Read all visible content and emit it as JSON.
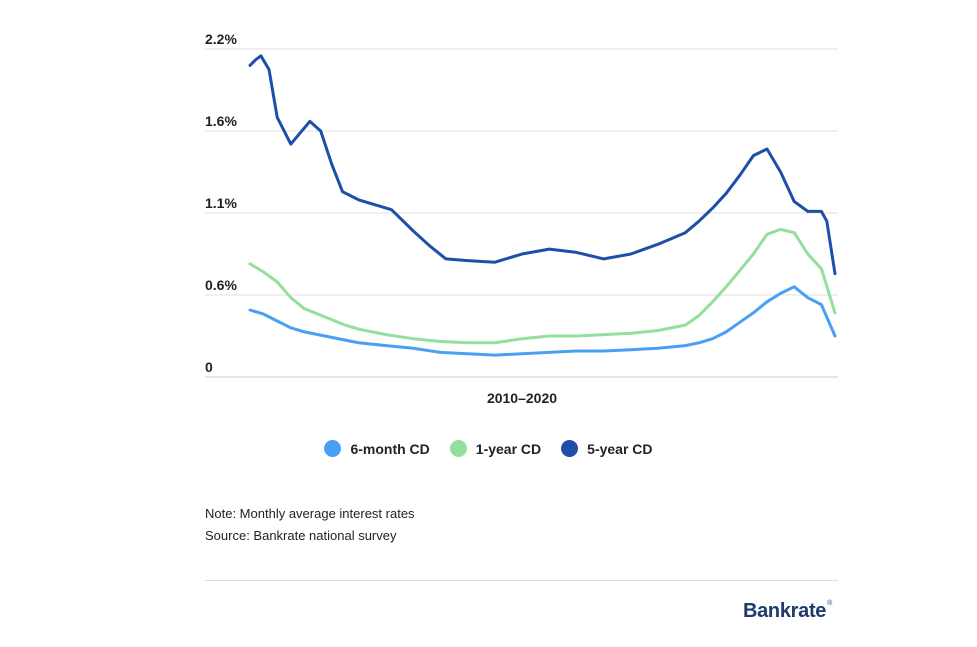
{
  "chart_data": {
    "type": "line",
    "title": "",
    "xlabel": "2010–2020",
    "ylabel": "",
    "y_ticks": [
      {
        "value": 0,
        "label": "0"
      },
      {
        "value": 0.6,
        "label": "0.6%"
      },
      {
        "value": 1.1,
        "label": "1.1%"
      },
      {
        "value": 1.6,
        "label": "1.6%"
      },
      {
        "value": 2.2,
        "label": "2.2%"
      }
    ],
    "ylim": [
      0,
      2.2
    ],
    "xlim": [
      2010,
      2020.75
    ],
    "grid": true,
    "legend_position": "bottom",
    "series": [
      {
        "name": "6-month CD",
        "color": "#4a9ff5",
        "x": [
          2010.0,
          2010.25,
          2010.5,
          2010.75,
          2011.0,
          2011.25,
          2011.5,
          2011.75,
          2012.0,
          2012.5,
          2013.0,
          2013.5,
          2014.0,
          2014.5,
          2015.0,
          2015.5,
          2016.0,
          2016.5,
          2017.0,
          2017.5,
          2018.0,
          2018.25,
          2018.5,
          2018.75,
          2019.0,
          2019.25,
          2019.5,
          2019.75,
          2020.0,
          2020.25,
          2020.5,
          2020.75
        ],
        "values": [
          0.49,
          0.46,
          0.41,
          0.36,
          0.33,
          0.31,
          0.29,
          0.27,
          0.25,
          0.23,
          0.21,
          0.18,
          0.17,
          0.16,
          0.17,
          0.18,
          0.19,
          0.19,
          0.2,
          0.21,
          0.23,
          0.25,
          0.28,
          0.33,
          0.4,
          0.47,
          0.55,
          0.61,
          0.65,
          0.58,
          0.53,
          0.3
        ]
      },
      {
        "name": "1-year CD",
        "color": "#93df9d",
        "x": [
          2010.0,
          2010.25,
          2010.5,
          2010.75,
          2011.0,
          2011.25,
          2011.5,
          2011.75,
          2012.0,
          2012.5,
          2013.0,
          2013.5,
          2014.0,
          2014.5,
          2015.0,
          2015.5,
          2016.0,
          2016.5,
          2017.0,
          2017.5,
          2018.0,
          2018.25,
          2018.5,
          2018.75,
          2019.0,
          2019.25,
          2019.5,
          2019.75,
          2020.0,
          2020.25,
          2020.5,
          2020.75
        ],
        "values": [
          0.79,
          0.74,
          0.68,
          0.58,
          0.5,
          0.46,
          0.42,
          0.38,
          0.35,
          0.31,
          0.28,
          0.26,
          0.25,
          0.25,
          0.28,
          0.3,
          0.3,
          0.31,
          0.32,
          0.34,
          0.38,
          0.45,
          0.55,
          0.65,
          0.75,
          0.85,
          0.97,
          1.0,
          0.98,
          0.85,
          0.76,
          0.47
        ]
      },
      {
        "name": "5-year CD",
        "color": "#1e4fa8",
        "x": [
          2010.0,
          2010.1,
          2010.2,
          2010.35,
          2010.5,
          2010.75,
          2010.9,
          2011.1,
          2011.3,
          2011.5,
          2011.7,
          2012.0,
          2012.3,
          2012.6,
          2013.0,
          2013.3,
          2013.6,
          2014.0,
          2014.5,
          2015.0,
          2015.5,
          2016.0,
          2016.5,
          2017.0,
          2017.5,
          2018.0,
          2018.25,
          2018.5,
          2018.75,
          2019.0,
          2019.25,
          2019.5,
          2019.75,
          2020.0,
          2020.25,
          2020.5,
          2020.6,
          2020.75
        ],
        "values": [
          2.08,
          2.12,
          2.15,
          2.05,
          1.7,
          1.52,
          1.58,
          1.67,
          1.6,
          1.4,
          1.23,
          1.18,
          1.15,
          1.12,
          0.99,
          0.9,
          0.82,
          0.81,
          0.8,
          0.85,
          0.88,
          0.86,
          0.82,
          0.85,
          0.91,
          0.98,
          1.05,
          1.13,
          1.22,
          1.33,
          1.45,
          1.49,
          1.35,
          1.17,
          1.11,
          1.11,
          1.05,
          0.73
        ]
      }
    ]
  },
  "legend": {
    "items": [
      {
        "label": "6-month CD",
        "color": "#4a9ff5"
      },
      {
        "label": "1-year CD",
        "color": "#93df9d"
      },
      {
        "label": "5-year CD",
        "color": "#1e4fa8"
      }
    ]
  },
  "notes": {
    "note": "Note: Monthly average interest rates",
    "source": "Source: Bankrate national survey"
  },
  "branding": {
    "logo_text": "Bankrate",
    "logo_mark": "®"
  }
}
